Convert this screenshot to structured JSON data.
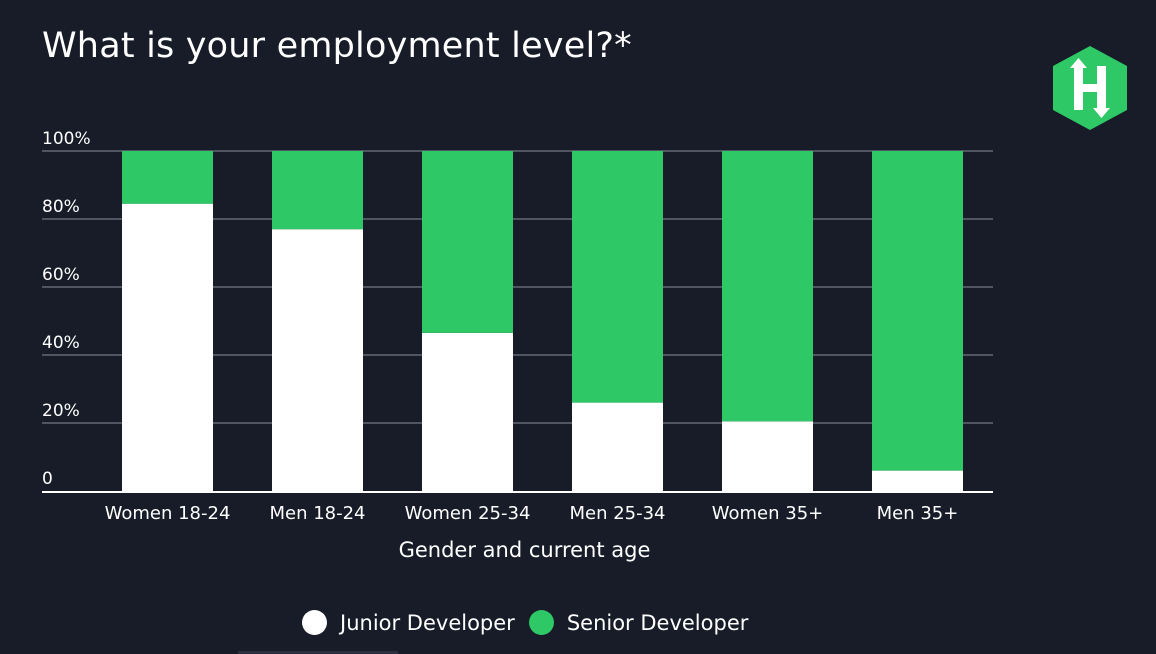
{
  "colors": {
    "background": "#171c28",
    "junior": "#ffffff",
    "senior": "#2ec866",
    "gridline": "#8a8f99",
    "text": "#ffffff"
  },
  "logo": {
    "letter": "H",
    "icon": "hackerrank-logo-icon",
    "color": "#2ec866"
  },
  "chart_data": {
    "type": "bar",
    "stacked": true,
    "title": "What is your employment level?*",
    "xlabel": "Gender and current age",
    "ylabel": "",
    "ylim": [
      0,
      100
    ],
    "yticks": [
      0,
      20,
      40,
      60,
      80,
      100
    ],
    "ytick_labels": [
      "0",
      "20%",
      "40%",
      "60%",
      "80%",
      "100%"
    ],
    "grid": true,
    "legend_position": "bottom-center",
    "categories": [
      "Women 18-24",
      "Men 18-24",
      "Women 25-34",
      "Men 25-34",
      "Women 35+",
      "Men 35+"
    ],
    "series": [
      {
        "name": "Junior Developer",
        "color": "#ffffff",
        "values": [
          84.5,
          77,
          46.5,
          26,
          20.5,
          6
        ]
      },
      {
        "name": "Senior Developer",
        "color": "#2ec866",
        "values": [
          15.5,
          23,
          53.5,
          74,
          79.5,
          94
        ]
      }
    ]
  }
}
